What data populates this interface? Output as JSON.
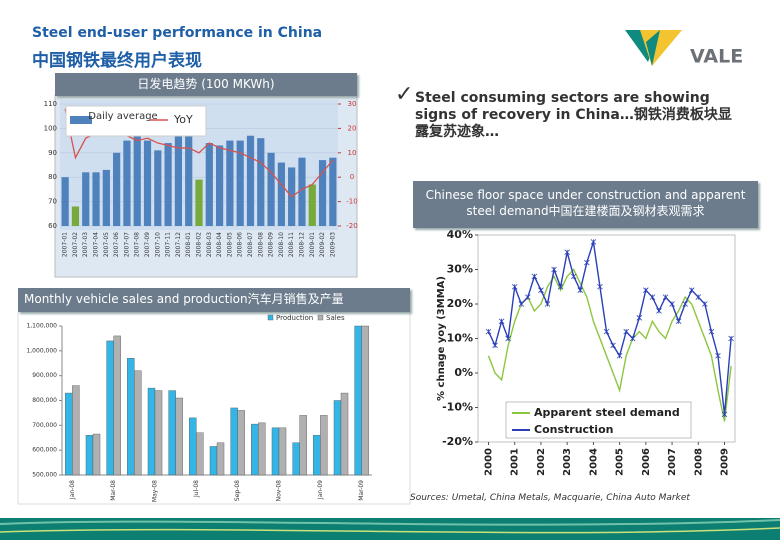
{
  "header": {
    "title": "Steel end-user performance in China",
    "subtitle": "中国钢铁最终用户表现",
    "logo": "VALE"
  },
  "bullet": "Steel consuming sectors are showing signs of recovery in China…钢铁消费板块显露复苏迹象…",
  "sources": "Sources: Umetal, China Metals, Macquarie, China Auto Market",
  "chart_data": [
    {
      "type": "bar",
      "title": "日发电趋势 (100 MKWh)",
      "categories": [
        "2007-01",
        "2007-02",
        "2007-03",
        "2007-04",
        "2007-05",
        "2007-06",
        "2007-07",
        "2007-08",
        "2007-09",
        "2007-10",
        "2007-11",
        "2007-12",
        "2008-01",
        "2008-02",
        "2008-03",
        "2008-04",
        "2008-05",
        "2008-06",
        "2008-07",
        "2008-08",
        "2008-09",
        "2008-10",
        "2008-11",
        "2008-12",
        "2009-01",
        "2009-02",
        "2009-03"
      ],
      "series": [
        {
          "name": "Daily average",
          "color": "#4f81bd",
          "colors": [
            "#4f81bd",
            "#77a93b",
            "#4f81bd",
            "#4f81bd",
            "#4f81bd",
            "#4f81bd",
            "#4f81bd",
            "#4f81bd",
            "#4f81bd",
            "#4f81bd",
            "#4f81bd",
            "#4f81bd",
            "#4f81bd",
            "#77a93b",
            "#4f81bd",
            "#4f81bd",
            "#4f81bd",
            "#4f81bd",
            "#4f81bd",
            "#4f81bd",
            "#4f81bd",
            "#4f81bd",
            "#4f81bd",
            "#4f81bd",
            "#77a93b",
            "#4f81bd",
            "#4f81bd"
          ],
          "values": [
            80,
            68,
            82,
            82,
            83,
            90,
            95,
            97,
            95,
            91,
            94,
            98,
            97,
            79,
            94,
            93,
            95,
            95,
            97,
            96,
            90,
            86,
            84,
            88,
            77,
            87,
            88
          ]
        },
        {
          "name": "YoY",
          "color": "#d9534f",
          "axis": "y2",
          "values": [
            28,
            8,
            16,
            18,
            19,
            18,
            17,
            15,
            16,
            14,
            13,
            12,
            12,
            10,
            14,
            12,
            11,
            10,
            8,
            6,
            2,
            -3,
            -8,
            -5,
            -3,
            2,
            7
          ]
        }
      ],
      "ylim": [
        60,
        110
      ],
      "yticks": [
        60,
        70,
        80,
        90,
        100,
        110
      ],
      "y2lim": [
        -20,
        30
      ],
      "y2ticks": [
        -20,
        -10,
        0,
        10,
        20,
        30
      ]
    },
    {
      "type": "bar",
      "title": "Monthly vehicle sales and production汽车月销售及产量",
      "categories": [
        "Jan-08",
        null,
        "Mar-08",
        null,
        "May-08",
        null,
        "Jul-08",
        null,
        "Sep-08",
        null,
        "Nov-08",
        null,
        "Jan-09",
        null,
        "Mar-09"
      ],
      "series": [
        {
          "name": "Production",
          "color": "#33b5e5",
          "values": [
            830000,
            660000,
            1040000,
            970000,
            850000,
            840000,
            730000,
            615000,
            770000,
            705000,
            690000,
            630000,
            660000,
            800000,
            1100000
          ]
        },
        {
          "name": "Sales",
          "color": "#b0b0b0",
          "values": [
            860000,
            665000,
            1060000,
            920000,
            840000,
            810000,
            670000,
            630000,
            760000,
            710000,
            690000,
            740000,
            740000,
            830000,
            1100000
          ]
        }
      ],
      "ylim": [
        500000,
        1100000
      ],
      "yticks": [
        {
          "value": 500000,
          "label": "500,000"
        },
        {
          "value": 600000,
          "label": "600,000"
        },
        {
          "value": 700000,
          "label": "700,000"
        },
        {
          "value": 800000,
          "label": "800,000"
        },
        {
          "value": 900000,
          "label": "900,000"
        },
        {
          "value": 1000000,
          "label": "1,000,000"
        },
        {
          "value": 1100000,
          "label": "1,100,000"
        }
      ],
      "legend": "top-right"
    },
    {
      "type": "line",
      "title": "Chinese floor space under construction and apparent steel demand中国在建楼面及钢材表观需求",
      "y_label": "% chnage yoy (3MMA)",
      "x": [
        2000,
        2000.25,
        2000.5,
        2000.75,
        2001,
        2001.25,
        2001.5,
        2001.75,
        2002,
        2002.25,
        2002.5,
        2002.75,
        2003,
        2003.25,
        2003.5,
        2003.75,
        2004,
        2004.25,
        2004.5,
        2004.75,
        2005,
        2005.25,
        2005.5,
        2005.75,
        2006,
        2006.25,
        2006.5,
        2006.75,
        2007,
        2007.25,
        2007.5,
        2007.75,
        2008,
        2008.25,
        2008.5,
        2008.75,
        2009,
        2009.25
      ],
      "series": [
        {
          "name": "Apparent steel demand",
          "color": "#8cc63f",
          "values": [
            5,
            0,
            -2,
            8,
            15,
            20,
            22,
            18,
            20,
            25,
            28,
            24,
            28,
            30,
            26,
            22,
            15,
            10,
            5,
            0,
            -5,
            5,
            10,
            12,
            10,
            15,
            12,
            10,
            15,
            18,
            22,
            20,
            15,
            10,
            5,
            -5,
            -14,
            2
          ]
        },
        {
          "name": "Construction",
          "color": "#2a3fb8",
          "marker": "star",
          "values": [
            12,
            8,
            15,
            10,
            25,
            20,
            22,
            28,
            24,
            20,
            30,
            25,
            35,
            28,
            24,
            32,
            38,
            25,
            12,
            8,
            5,
            12,
            10,
            16,
            24,
            22,
            18,
            22,
            20,
            15,
            20,
            24,
            22,
            20,
            12,
            5,
            -12,
            10
          ]
        }
      ],
      "xlim": [
        1999.6,
        2009.4
      ],
      "xticks": [
        2000,
        2001,
        2002,
        2003,
        2004,
        2005,
        2006,
        2007,
        2008,
        2009
      ],
      "ylim": [
        -20,
        40
      ],
      "yticks": [
        {
          "value": -20,
          "label": "-20%"
        },
        {
          "value": -10,
          "label": "-10%"
        },
        {
          "value": 0,
          "label": "0%"
        },
        {
          "value": 10,
          "label": "10%"
        },
        {
          "value": 20,
          "label": "20%"
        },
        {
          "value": 30,
          "label": "30%"
        },
        {
          "value": 40,
          "label": "40%"
        }
      ],
      "legend": "lower-left"
    }
  ]
}
